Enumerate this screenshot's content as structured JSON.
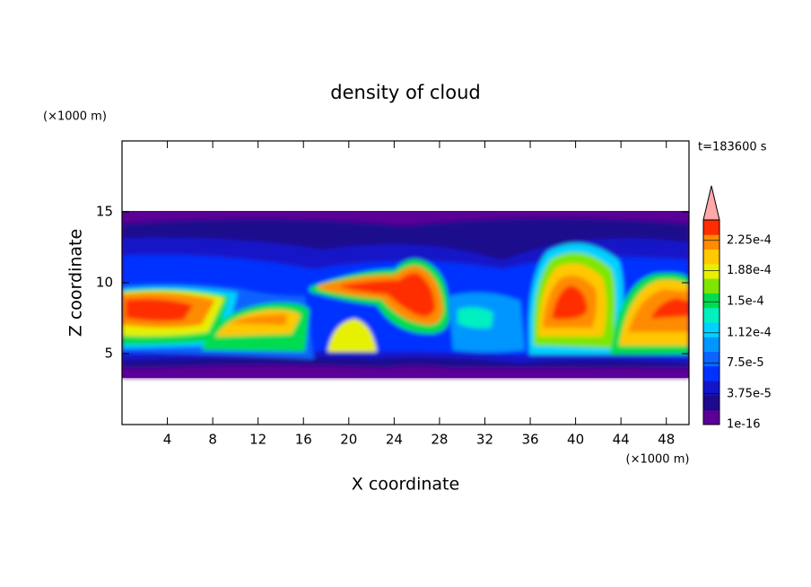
{
  "chart_data": {
    "type": "contour",
    "title": "density of cloud",
    "x_label": "X coordinate",
    "y_label": "Z coordinate",
    "x_unit": "(×1000 m)",
    "y_unit": "(×1000 m)",
    "time_label": "t=183600 s",
    "xlim": [
      0,
      50
    ],
    "ylim": [
      0,
      20
    ],
    "xticks": [
      4,
      8,
      12,
      16,
      20,
      24,
      28,
      32,
      36,
      40,
      44,
      48
    ],
    "yticks": [
      5,
      10,
      15
    ],
    "colorbar": {
      "lim": [
        1e-16,
        0.00025
      ],
      "ticks": [
        1e-16,
        {
          "value": 3.75e-05,
          "label": "3.75e-5"
        },
        {
          "value": 7.5e-05,
          "label": "7.5e-5"
        },
        {
          "value": 0.000112,
          "label": "1.12e-4"
        },
        {
          "value": 0.00015,
          "label": "1.5e-4"
        },
        {
          "value": 0.000188,
          "label": "1.88e-4"
        },
        {
          "value": 0.000225,
          "label": "2.25e-4"
        }
      ],
      "colors": [
        "#5a0096",
        "#1e0a8c",
        "#1414c8",
        "#0032ff",
        "#0a64ff",
        "#0096ff",
        "#00d2ff",
        "#00f0c0",
        "#00dc50",
        "#7ee600",
        "#e6f000",
        "#ffc800",
        "#ff8c00",
        "#ff2d00"
      ],
      "extend_color": "#ffa8a8"
    }
  }
}
